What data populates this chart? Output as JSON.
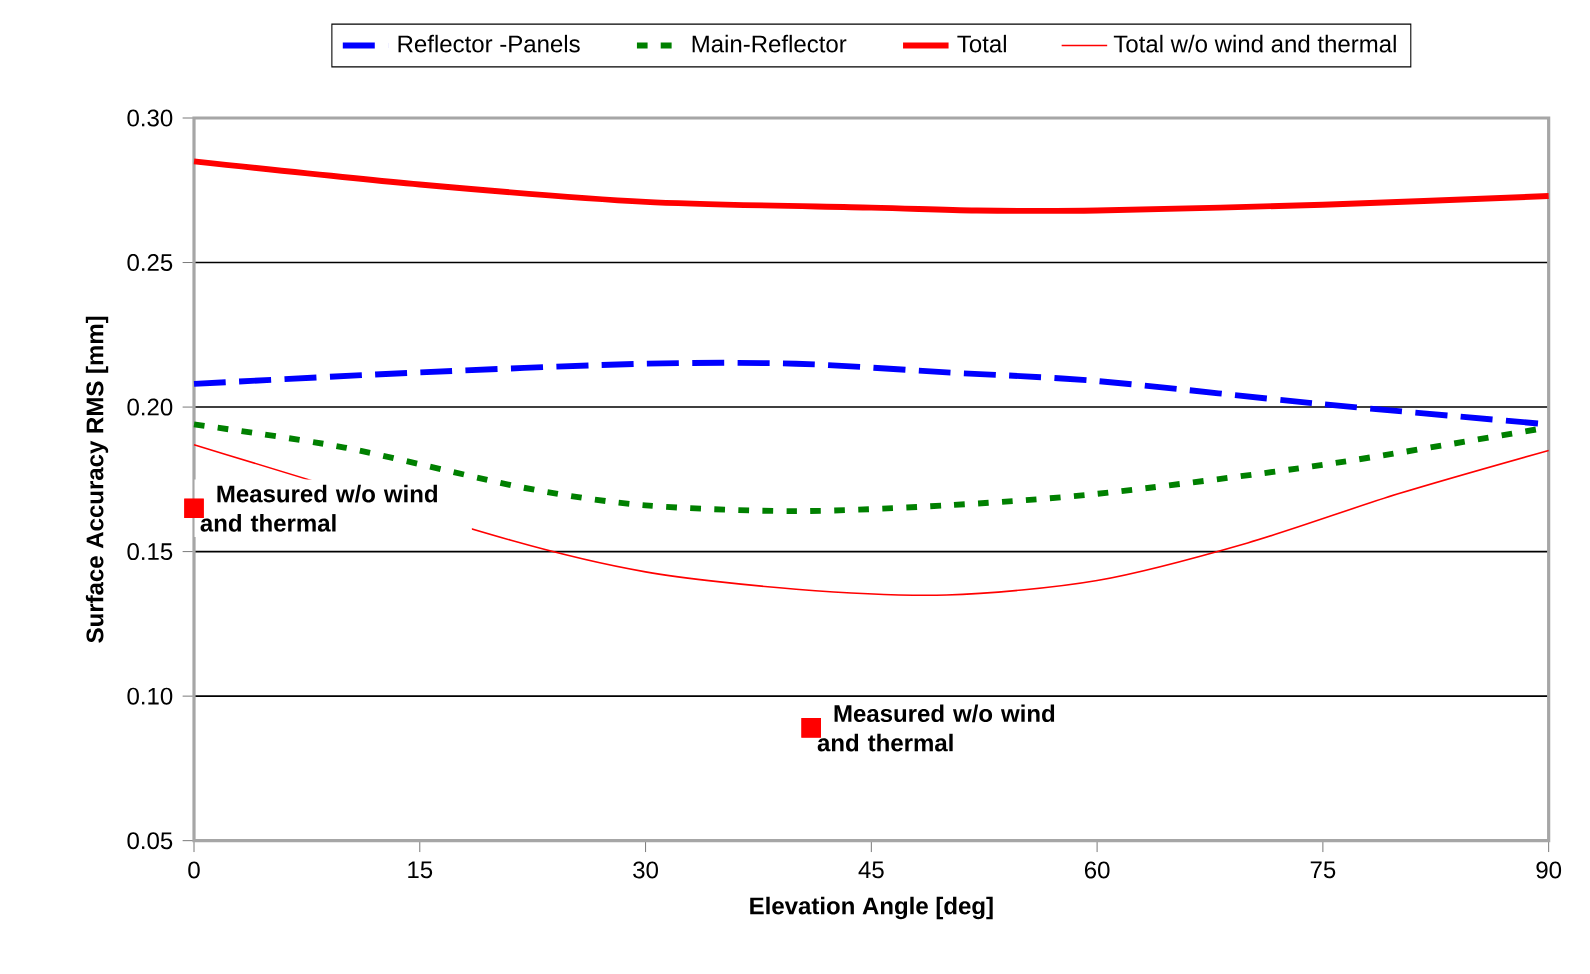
{
  "chart_data": {
    "type": "line",
    "xlabel": "Elevation Angle [deg]",
    "ylabel": "Surface Accuracy RMS [mm]",
    "xlim": [
      0,
      90
    ],
    "xticks": [
      0,
      15,
      30,
      45,
      60,
      75,
      90
    ],
    "ylim": [
      0.05,
      0.3
    ],
    "yticks": [
      {
        "value": 0.05,
        "label": "0.05"
      },
      {
        "value": 0.1,
        "label": "0.10"
      },
      {
        "value": 0.15,
        "label": "0.15"
      },
      {
        "value": 0.2,
        "label": "0.20"
      },
      {
        "value": 0.25,
        "label": "0.25"
      },
      {
        "value": 0.3,
        "label": "0.30"
      }
    ],
    "grid": "y",
    "legend": "top",
    "marker": "none",
    "series": [
      {
        "name": "Reflector -Panels",
        "color": "#0000ff",
        "line_style": "dashed",
        "x": [
          0,
          15,
          30,
          40,
          50,
          60,
          75,
          90
        ],
        "values": [
          0.208,
          0.212,
          0.215,
          0.215,
          0.212,
          0.209,
          0.201,
          0.194
        ]
      },
      {
        "name": "Main-Reflector",
        "color": "#008000",
        "line_style": "dotted",
        "x": [
          0,
          10,
          22,
          30,
          40,
          50,
          60,
          75,
          90
        ],
        "values": [
          0.194,
          0.186,
          0.172,
          0.166,
          0.164,
          0.166,
          0.17,
          0.18,
          0.193
        ]
      },
      {
        "name": "Total",
        "color": "#ff0000",
        "line_style": "solid",
        "x": [
          0,
          15,
          30,
          45,
          52,
          60,
          75,
          90
        ],
        "values": [
          0.285,
          0.277,
          0.271,
          0.269,
          0.268,
          0.268,
          0.27,
          0.273
        ]
      },
      {
        "name": "Total w/o wind and thermal",
        "color": "#ff0000",
        "line_style": "solid",
        "x": [
          0,
          21,
          30,
          40,
          50,
          60,
          70,
          80,
          90
        ],
        "values": [
          0.187,
          0.154,
          0.143,
          0.137,
          0.135,
          0.14,
          0.153,
          0.17,
          0.185
        ]
      },
      {
        "type": "scatter",
        "marker": "square",
        "color": "#ff0000",
        "x": [
          0,
          41
        ],
        "values": [
          0.165,
          0.089
        ]
      }
    ],
    "annotations": [
      {
        "text": "Measured w/o wind and thermal",
        "x": 0,
        "y": 0.165
      },
      {
        "text": "Measured w/o wind and thermal",
        "x": 41,
        "y": 0.089
      }
    ]
  }
}
